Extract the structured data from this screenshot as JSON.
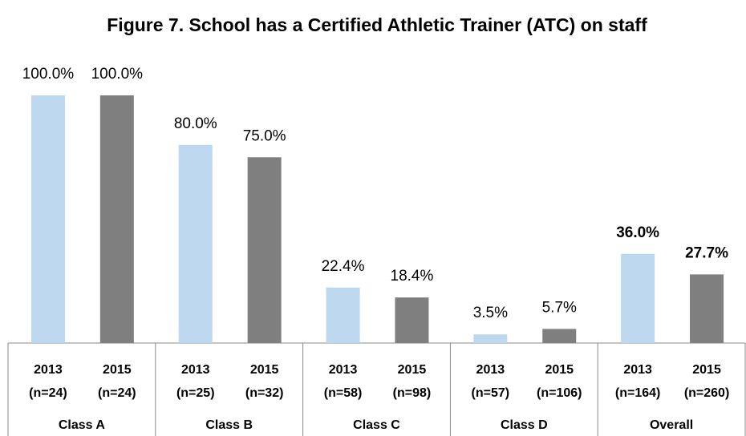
{
  "chart_data": {
    "type": "bar",
    "title": "Figure 7. School has a Certified Athletic Trainer (ATC) on staff",
    "categories": [
      "Class A",
      "Class B",
      "Class C",
      "Class D",
      "Overall"
    ],
    "series": [
      {
        "name": "2013",
        "color": "#bdd7ee",
        "values": [
          100,
          80,
          22.4,
          3.5,
          36
        ],
        "value_labels": [
          "100.0%",
          "80.0%",
          "22.4%",
          "3.5%",
          "36.0%"
        ],
        "n_labels": [
          "(n=24)",
          "(n=25)",
          "(n=58)",
          "(n=57)",
          "(n=164)"
        ]
      },
      {
        "name": "2015",
        "color": "#7f7f7f",
        "values": [
          100,
          75,
          18.4,
          5.7,
          27.7
        ],
        "value_labels": [
          "100.0%",
          "75.0%",
          "18.4%",
          "5.7%",
          "27.7%"
        ],
        "n_labels": [
          "(n=24)",
          "(n=32)",
          "(n=98)",
          "(n=106)",
          "(n=260)"
        ]
      }
    ],
    "ylim": [
      0,
      100
    ]
  }
}
